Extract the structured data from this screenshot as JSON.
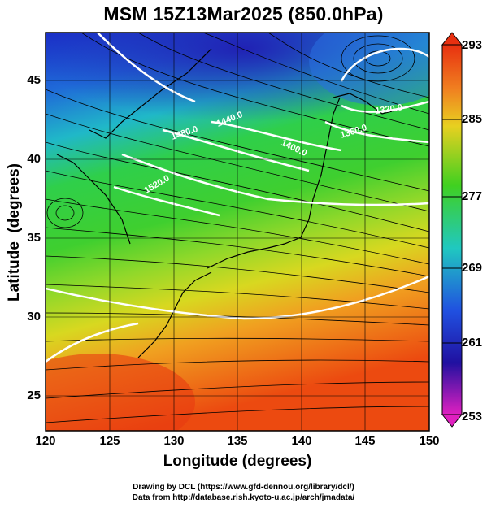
{
  "title": "MSM 15Z13Mar2025 (850.0hPa)",
  "xlabel": "Longitude (degrees)",
  "ylabel": "Latitude  (degrees)",
  "x_ticks": [
    "120",
    "125",
    "130",
    "135",
    "140",
    "145",
    "150"
  ],
  "y_ticks": [
    "25",
    "30",
    "35",
    "40",
    "45"
  ],
  "colorbar": {
    "ticks": [
      "293",
      "285",
      "277",
      "269",
      "261",
      "253"
    ],
    "min": 253,
    "max": 293
  },
  "contour_labels": [
    "1320.0",
    "1360.0",
    "1400.0",
    "1440.0",
    "1480.0",
    "1520.0"
  ],
  "credits": {
    "line1": "Drawing by DCL (https://www.gfd-dennou.org/library/dcl/)",
    "line2": "Data from http://database.rish.kyoto-u.ac.jp/arch/jmadata/"
  },
  "colors": {
    "cold": "#2020c0",
    "mid": "#20c020",
    "warm": "#e05010",
    "contour": "#ffffff"
  },
  "chart_data": {
    "type": "heatmap",
    "title": "MSM 15Z13Mar2025 (850.0hPa)",
    "xlabel": "Longitude (degrees)",
    "ylabel": "Latitude  (degrees)",
    "xlim": [
      120,
      150
    ],
    "ylim": [
      22.4,
      47.6
    ],
    "colorbar_range": [
      253,
      293
    ],
    "geopotential_contours": [
      1320.0,
      1360.0,
      1400.0,
      1440.0,
      1480.0,
      1520.0
    ]
  }
}
